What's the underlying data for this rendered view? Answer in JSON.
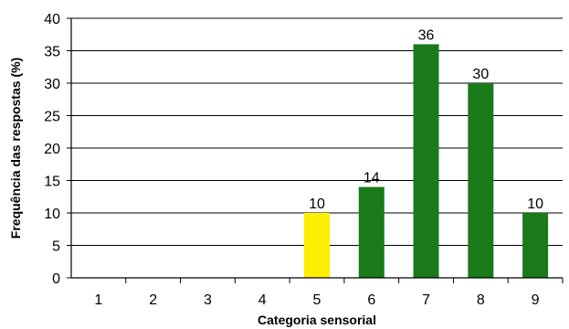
{
  "chart_data": {
    "type": "bar",
    "categories": [
      "1",
      "2",
      "3",
      "4",
      "5",
      "6",
      "7",
      "8",
      "9"
    ],
    "values": [
      0,
      0,
      0,
      0,
      10,
      14,
      36,
      30,
      10
    ],
    "bar_colors": [
      "#1a7a1a",
      "#1a7a1a",
      "#1a7a1a",
      "#1a7a1a",
      "#ffee00",
      "#1a7a1a",
      "#1a7a1a",
      "#1a7a1a",
      "#1a7a1a"
    ],
    "data_labels": [
      "",
      "",
      "",
      "",
      "10",
      "14",
      "36",
      "30",
      "10"
    ],
    "xlabel": "Categoria sensorial",
    "ylabel": "Frequência das respostas (%)",
    "ylim": [
      0,
      40
    ],
    "yticks": [
      "0",
      "5",
      "10",
      "15",
      "20",
      "25",
      "30",
      "35",
      "40"
    ],
    "grid": true
  }
}
